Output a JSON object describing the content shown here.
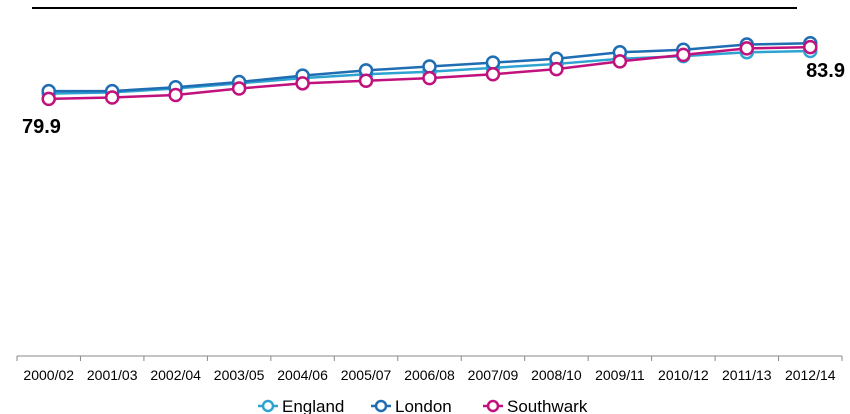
{
  "chart_data": {
    "type": "line",
    "title": "",
    "xlabel": "",
    "ylabel": "",
    "ylim": [
      60,
      86
    ],
    "grid": false,
    "legend_position": "bottom",
    "categories": [
      "2000/02",
      "2001/03",
      "2002/04",
      "2003/05",
      "2004/06",
      "2005/07",
      "2006/08",
      "2007/09",
      "2008/10",
      "2009/11",
      "2010/12",
      "2011/13",
      "2012/14"
    ],
    "series": [
      {
        "name": "England",
        "color": "#2ea3d1",
        "values": [
          80.3,
          80.4,
          80.7,
          81.1,
          81.5,
          81.8,
          82.0,
          82.3,
          82.6,
          83.0,
          83.2,
          83.5,
          83.6
        ]
      },
      {
        "name": "London",
        "color": "#1f6db3",
        "values": [
          80.5,
          80.5,
          80.8,
          81.2,
          81.7,
          82.1,
          82.4,
          82.7,
          83.0,
          83.5,
          83.7,
          84.1,
          84.2
        ]
      },
      {
        "name": "Southwark",
        "color": "#c0117d",
        "values": [
          79.9,
          80.0,
          80.2,
          80.7,
          81.1,
          81.3,
          81.5,
          81.8,
          82.2,
          82.8,
          83.3,
          83.8,
          83.9
        ]
      }
    ],
    "data_labels": [
      {
        "series": "Southwark",
        "category": "2000/02",
        "text": "79.9"
      },
      {
        "series": "Southwark",
        "category": "2012/14",
        "text": "83.9"
      }
    ]
  }
}
